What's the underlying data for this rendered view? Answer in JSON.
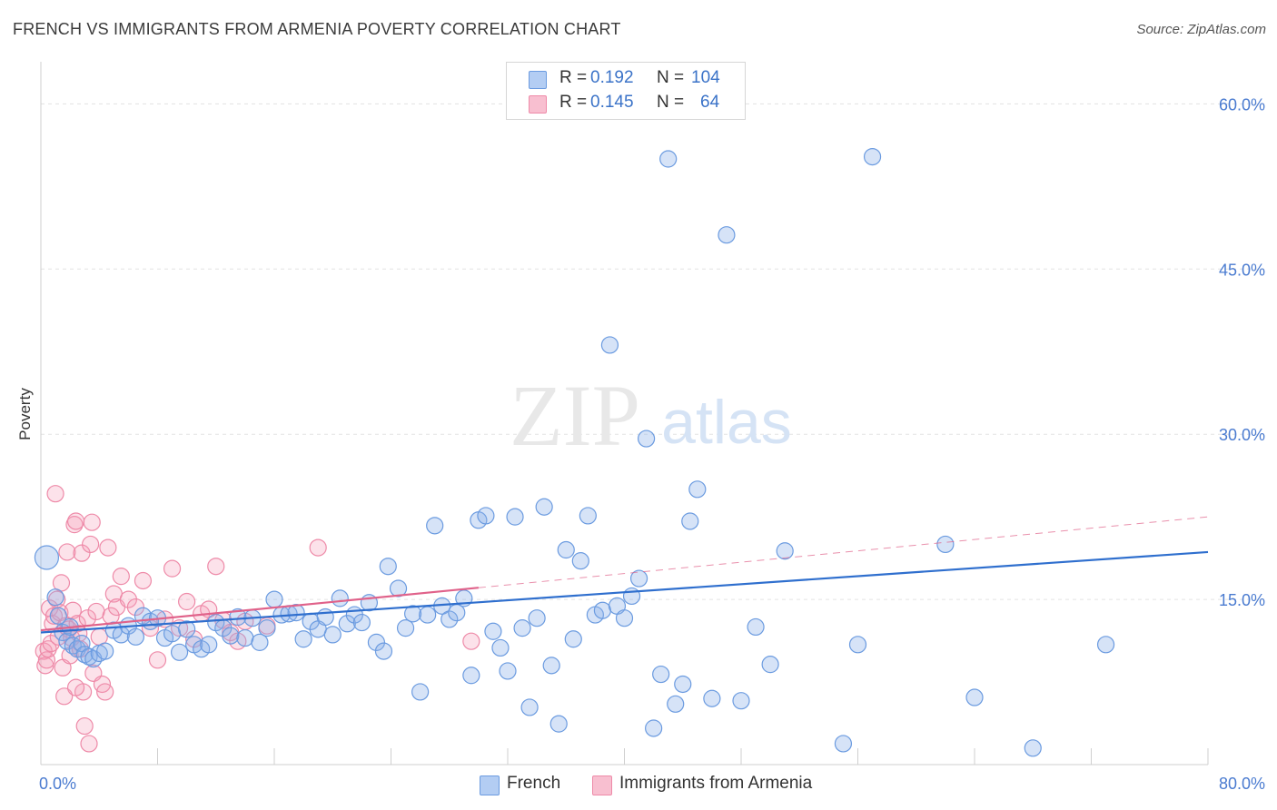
{
  "title": "FRENCH VS IMMIGRANTS FROM ARMENIA POVERTY CORRELATION CHART",
  "source": "Source: ZipAtlas.com",
  "watermark": {
    "zip": "ZIP",
    "atlas": "atlas"
  },
  "legend": {
    "rows": [
      {
        "r_label": "R =",
        "r_value": "0.192",
        "n_label": "N =",
        "n_value": "104",
        "color": "#b3cdf3"
      },
      {
        "r_label": "R =",
        "r_value": "0.145",
        "n_label": "N =",
        "n_value": "64",
        "color": "#f8bfd0"
      }
    ]
  },
  "bottom_legend": [
    {
      "label": "French",
      "color": "#b3cdf3"
    },
    {
      "label": "Immigrants from Armenia",
      "color": "#f8bfd0"
    }
  ],
  "colors": {
    "french_fill": "rgba(138,176,232,0.35)",
    "french_stroke": "#6b9be0",
    "french_line": "#2f6fce",
    "armenia_fill": "rgba(244,160,186,0.30)",
    "armenia_stroke": "#ee8aa8",
    "armenia_line": "#e0628a",
    "tick_text": "#4a7bd0",
    "grid": "#e3e3e3"
  },
  "chart_data": {
    "type": "scatter",
    "title": "FRENCH VS IMMIGRANTS FROM ARMENIA POVERTY CORRELATION CHART",
    "xlabel": "",
    "ylabel": "Poverty",
    "xlim": [
      0,
      80
    ],
    "ylim": [
      0,
      63
    ],
    "x_tick_labels": [
      "0.0%",
      "80.0%"
    ],
    "y_ticks": [
      15,
      30,
      45,
      60
    ],
    "y_tick_labels": [
      "15.0%",
      "30.0%",
      "45.0%",
      "60.0%"
    ],
    "grid": true,
    "legend_position": "top-center",
    "series": [
      {
        "name": "French",
        "r": 0.192,
        "n": 104,
        "trend": {
          "x": [
            0,
            80
          ],
          "y": [
            12.0,
            19.3
          ],
          "dashed_after": null
        },
        "points": [
          [
            0.4,
            18.8
          ],
          [
            1.0,
            15.2
          ],
          [
            1.2,
            13.5
          ],
          [
            1.5,
            12.0
          ],
          [
            1.8,
            11.2
          ],
          [
            2.0,
            12.5
          ],
          [
            2.2,
            10.8
          ],
          [
            2.5,
            10.5
          ],
          [
            2.8,
            11.0
          ],
          [
            3.0,
            10.0
          ],
          [
            3.3,
            9.8
          ],
          [
            3.6,
            9.6
          ],
          [
            4.0,
            10.1
          ],
          [
            4.4,
            10.3
          ],
          [
            5.0,
            12.2
          ],
          [
            5.5,
            11.8
          ],
          [
            6.0,
            12.6
          ],
          [
            6.5,
            11.6
          ],
          [
            7.0,
            13.5
          ],
          [
            7.5,
            13.0
          ],
          [
            8.0,
            13.3
          ],
          [
            8.5,
            11.5
          ],
          [
            9.0,
            11.9
          ],
          [
            9.5,
            10.2
          ],
          [
            10.0,
            12.3
          ],
          [
            10.5,
            10.9
          ],
          [
            11.0,
            10.5
          ],
          [
            11.5,
            10.9
          ],
          [
            12.0,
            12.9
          ],
          [
            12.5,
            12.4
          ],
          [
            13.0,
            11.7
          ],
          [
            13.5,
            13.4
          ],
          [
            14.0,
            11.5
          ],
          [
            14.5,
            13.3
          ],
          [
            15.0,
            11.1
          ],
          [
            15.5,
            12.4
          ],
          [
            16.0,
            15.0
          ],
          [
            16.5,
            13.6
          ],
          [
            17.0,
            13.7
          ],
          [
            17.5,
            13.8
          ],
          [
            18.0,
            11.4
          ],
          [
            18.5,
            13.0
          ],
          [
            19.0,
            12.3
          ],
          [
            19.5,
            13.4
          ],
          [
            20.0,
            11.8
          ],
          [
            20.5,
            15.1
          ],
          [
            21.0,
            12.8
          ],
          [
            21.5,
            13.6
          ],
          [
            22.0,
            12.9
          ],
          [
            22.5,
            14.7
          ],
          [
            23.0,
            11.1
          ],
          [
            23.5,
            10.3
          ],
          [
            23.8,
            18.0
          ],
          [
            24.5,
            16.0
          ],
          [
            25.0,
            12.4
          ],
          [
            25.5,
            13.7
          ],
          [
            26.0,
            6.6
          ],
          [
            26.5,
            13.6
          ],
          [
            27.0,
            21.7
          ],
          [
            27.5,
            14.4
          ],
          [
            28.0,
            13.2
          ],
          [
            28.5,
            13.8
          ],
          [
            29.0,
            15.1
          ],
          [
            29.5,
            8.1
          ],
          [
            30.0,
            22.2
          ],
          [
            30.5,
            22.6
          ],
          [
            31.0,
            12.1
          ],
          [
            31.5,
            10.6
          ],
          [
            32.0,
            8.5
          ],
          [
            32.5,
            22.5
          ],
          [
            33.0,
            12.4
          ],
          [
            33.5,
            5.2
          ],
          [
            34.0,
            13.3
          ],
          [
            34.5,
            23.4
          ],
          [
            35.0,
            9.0
          ],
          [
            35.5,
            3.7
          ],
          [
            36.0,
            19.5
          ],
          [
            36.5,
            11.4
          ],
          [
            37.0,
            18.5
          ],
          [
            37.5,
            22.6
          ],
          [
            38.0,
            13.6
          ],
          [
            38.5,
            14.0
          ],
          [
            39.0,
            38.1
          ],
          [
            39.5,
            14.4
          ],
          [
            40.0,
            13.3
          ],
          [
            40.5,
            15.3
          ],
          [
            41.0,
            16.9
          ],
          [
            41.5,
            29.6
          ],
          [
            42.0,
            3.3
          ],
          [
            42.5,
            8.2
          ],
          [
            43.0,
            55.0
          ],
          [
            43.5,
            5.5
          ],
          [
            44.0,
            7.3
          ],
          [
            44.5,
            22.1
          ],
          [
            45.0,
            25.0
          ],
          [
            46.0,
            6.0
          ],
          [
            47.0,
            48.1
          ],
          [
            48.0,
            5.8
          ],
          [
            49.0,
            12.5
          ],
          [
            50.0,
            9.1
          ],
          [
            51.0,
            19.4
          ],
          [
            55.0,
            1.9
          ],
          [
            56.0,
            10.9
          ],
          [
            57.0,
            55.2
          ],
          [
            62.0,
            20.0
          ],
          [
            64.0,
            6.1
          ],
          [
            68.0,
            1.5
          ],
          [
            73.0,
            10.9
          ]
        ]
      },
      {
        "name": "Immigrants from Armenia",
        "r": 0.145,
        "n": 64,
        "trend": {
          "x": [
            0,
            80
          ],
          "y": [
            12.2,
            22.5
          ],
          "solid_until_x": 30
        },
        "points": [
          [
            0.2,
            10.3
          ],
          [
            0.3,
            9.0
          ],
          [
            0.4,
            9.5
          ],
          [
            0.5,
            10.5
          ],
          [
            0.6,
            14.2
          ],
          [
            0.7,
            11.0
          ],
          [
            0.8,
            12.8
          ],
          [
            0.9,
            13.5
          ],
          [
            1.0,
            24.6
          ],
          [
            1.1,
            15.0
          ],
          [
            1.2,
            11.6
          ],
          [
            1.3,
            13.8
          ],
          [
            1.4,
            16.5
          ],
          [
            1.5,
            8.8
          ],
          [
            1.6,
            6.2
          ],
          [
            1.7,
            12.6
          ],
          [
            1.8,
            19.3
          ],
          [
            1.9,
            12.3
          ],
          [
            2.0,
            9.9
          ],
          [
            2.1,
            11.5
          ],
          [
            2.2,
            14.0
          ],
          [
            2.3,
            21.8
          ],
          [
            2.4,
            22.1
          ],
          [
            2.5,
            12.8
          ],
          [
            2.6,
            11.9
          ],
          [
            2.7,
            10.5
          ],
          [
            2.8,
            19.2
          ],
          [
            2.9,
            6.6
          ],
          [
            3.0,
            3.5
          ],
          [
            3.2,
            13.3
          ],
          [
            3.4,
            20.0
          ],
          [
            3.5,
            22.0
          ],
          [
            3.6,
            8.3
          ],
          [
            3.8,
            13.9
          ],
          [
            4.0,
            11.6
          ],
          [
            4.2,
            7.3
          ],
          [
            4.4,
            6.6
          ],
          [
            4.6,
            19.7
          ],
          [
            4.8,
            13.5
          ],
          [
            5.0,
            15.5
          ],
          [
            5.2,
            14.3
          ],
          [
            5.5,
            17.1
          ],
          [
            6.0,
            15.0
          ],
          [
            6.5,
            14.3
          ],
          [
            7.0,
            16.7
          ],
          [
            7.5,
            12.4
          ],
          [
            8.0,
            9.5
          ],
          [
            8.5,
            13.2
          ],
          [
            9.0,
            17.8
          ],
          [
            9.5,
            12.4
          ],
          [
            10.0,
            14.8
          ],
          [
            10.5,
            11.4
          ],
          [
            11.0,
            13.7
          ],
          [
            11.5,
            14.1
          ],
          [
            12.0,
            18.0
          ],
          [
            12.5,
            13.1
          ],
          [
            13.0,
            12.0
          ],
          [
            13.5,
            11.2
          ],
          [
            14.0,
            13.0
          ],
          [
            15.5,
            12.6
          ],
          [
            19.0,
            19.7
          ],
          [
            29.5,
            11.2
          ],
          [
            3.3,
            1.9
          ],
          [
            2.4,
            7.0
          ]
        ]
      }
    ]
  }
}
